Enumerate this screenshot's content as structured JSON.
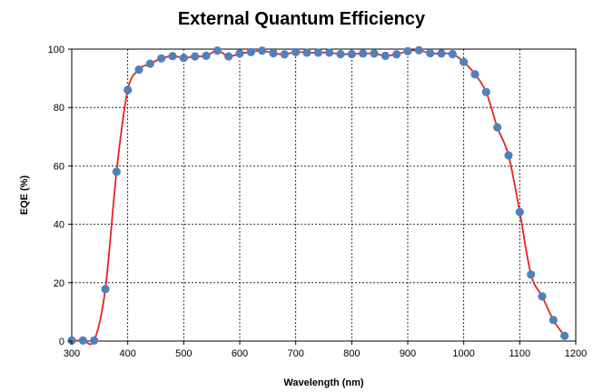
{
  "chart_data": {
    "type": "scatter",
    "title": "External Quantum Efficiency",
    "xlabel": "Wavelength (nm)",
    "ylabel": "EQE (%)",
    "xlim": [
      300,
      1200
    ],
    "ylim": [
      0,
      100
    ],
    "x_ticks": [
      300,
      400,
      500,
      600,
      700,
      800,
      900,
      1000,
      1100,
      1200
    ],
    "y_ticks": [
      0,
      20,
      40,
      60,
      80,
      100
    ],
    "grid": true,
    "legend": "none",
    "curve_color": "#e8231f",
    "marker_color": "#4f81bd",
    "series": [
      {
        "x": [
          300,
          320,
          340,
          360,
          380,
          400,
          420,
          440,
          460,
          480,
          500,
          520,
          540,
          560,
          580,
          600,
          620,
          640,
          660,
          680,
          700,
          720,
          740,
          760,
          780,
          800,
          820,
          840,
          860,
          880,
          900,
          920,
          940,
          960,
          980,
          1000,
          1020,
          1040,
          1060,
          1080,
          1100,
          1120,
          1140,
          1160,
          1180
        ],
        "y": [
          0.2,
          0.2,
          0.2,
          17.8,
          58,
          86,
          93,
          95,
          96.8,
          97.6,
          97,
          97.5,
          97.7,
          99.5,
          97.5,
          98.5,
          99,
          99.5,
          98.6,
          98.2,
          99,
          98.8,
          98.8,
          98.8,
          98.3,
          98.3,
          98.5,
          98.5,
          97.7,
          98.2,
          99.3,
          99.6,
          98.6,
          98.5,
          98.3,
          95.6,
          91.4,
          85.3,
          73.2,
          63.6,
          44.2,
          22.8,
          15.3,
          7.2,
          1.8
        ]
      }
    ]
  }
}
